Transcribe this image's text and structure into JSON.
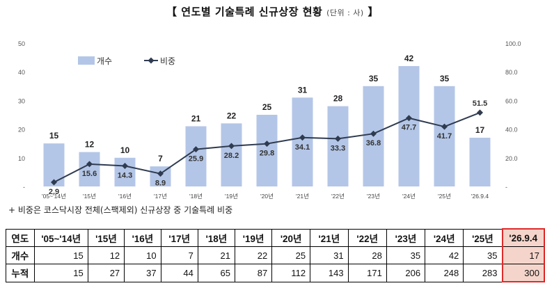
{
  "title": {
    "open": "【",
    "text": "연도별 기술특례 신규상장 현황",
    "unit": "(단위 : 사)",
    "close": "】"
  },
  "note": "+ 비중은 코스닥시장 전체(스팩제외) 신규상장 중 기술특례 비중",
  "chart_data": {
    "type": "bar",
    "categories": [
      "'05~'14년",
      "'15년",
      "'16년",
      "'17년",
      "'18년",
      "'19년",
      "'20년",
      "'21년",
      "'22년",
      "'23년",
      "'24년",
      "'25년",
      "'26.9.4"
    ],
    "series": [
      {
        "name": "개수",
        "type": "bar",
        "axis": "left",
        "values": [
          15,
          12,
          10,
          7,
          21,
          22,
          25,
          31,
          28,
          35,
          42,
          35,
          17
        ],
        "color": "#b4c6e7"
      },
      {
        "name": "비중",
        "type": "line",
        "axis": "right",
        "values": [
          2.9,
          15.6,
          14.3,
          8.9,
          25.9,
          28.2,
          29.8,
          34.1,
          33.3,
          36.8,
          47.7,
          41.7,
          51.5
        ],
        "color": "#2f3b50"
      }
    ],
    "y_left": {
      "range": [
        0,
        50
      ],
      "ticks": [
        "-",
        "10",
        "20",
        "30",
        "40",
        "50"
      ]
    },
    "y_right": {
      "range": [
        0,
        100
      ],
      "ticks": [
        "-",
        "20.0",
        "40.0",
        "60.0",
        "80.0",
        "100.0"
      ]
    },
    "legend": {
      "position": "top-left",
      "items": [
        "개수",
        "비중"
      ]
    },
    "grid": false
  },
  "table": {
    "header": [
      "연도",
      "'05~'14년",
      "'15년",
      "'16년",
      "'17년",
      "'18년",
      "'19년",
      "'20년",
      "'21년",
      "'22년",
      "'23년",
      "'24년",
      "'25년",
      "'26.9.4"
    ],
    "rows": [
      {
        "label": "개수",
        "values": [
          "15",
          "12",
          "10",
          "7",
          "21",
          "22",
          "25",
          "31",
          "28",
          "35",
          "42",
          "35",
          "17"
        ]
      },
      {
        "label": "누적",
        "values": [
          "15",
          "27",
          "37",
          "44",
          "65",
          "87",
          "112",
          "143",
          "171",
          "206",
          "248",
          "283",
          "300"
        ]
      }
    ],
    "highlight_color": "#f5d5cb",
    "highlight_border": "#e02a2a"
  }
}
